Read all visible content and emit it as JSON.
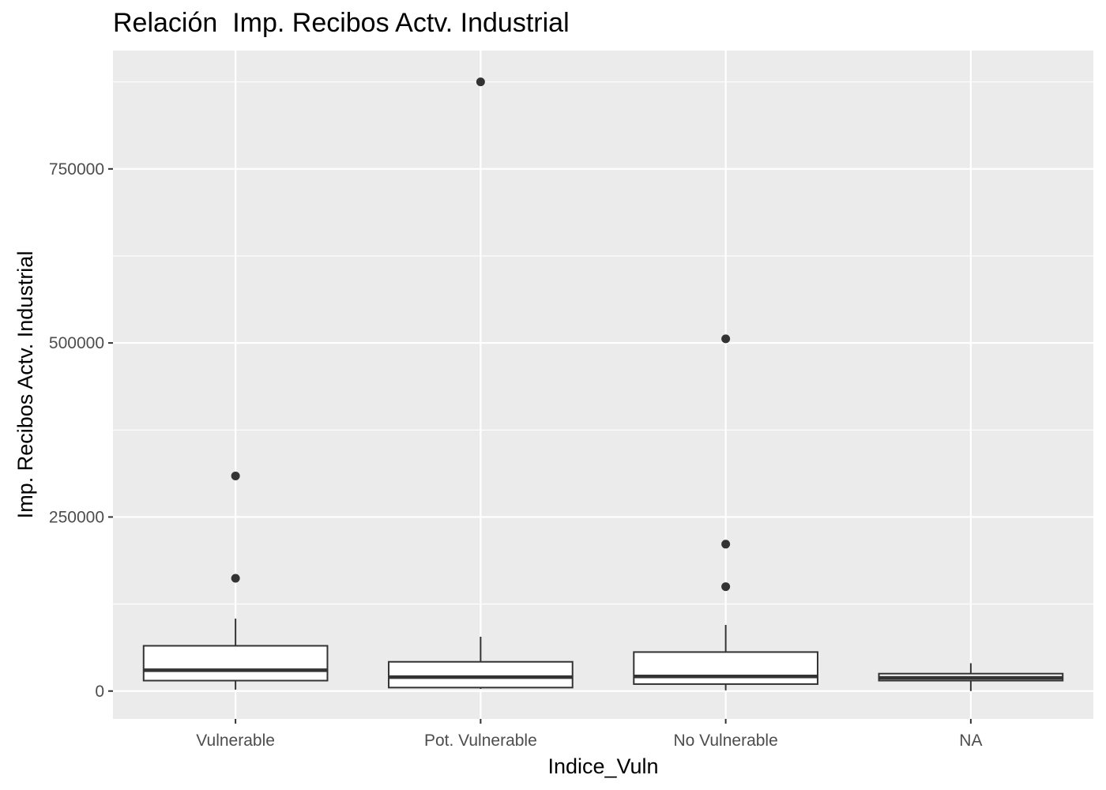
{
  "chart_data": {
    "type": "boxplot",
    "title": "Relación  Imp. Recibos Actv. Industrial",
    "xlabel": "Indice_Vuln",
    "ylabel": "Imp. Recibos Actv. Industrial",
    "categories": [
      "Vulnerable",
      "Pot. Vulnerable",
      "No Vulnerable",
      "NA"
    ],
    "y_ticks": [
      0,
      250000,
      500000,
      750000
    ],
    "y_tick_labels": [
      "0",
      "250000",
      "500000",
      "750000"
    ],
    "ylim": [
      -40000,
      920000
    ],
    "grid": true,
    "boxes": [
      {
        "category": "Vulnerable",
        "whisker_low": 2000,
        "q1": 15000,
        "median": 30000,
        "q3": 65000,
        "whisker_high": 104000,
        "outliers": [
          162000,
          309000
        ]
      },
      {
        "category": "Pot. Vulnerable",
        "whisker_low": 3000,
        "q1": 5000,
        "median": 20000,
        "q3": 42000,
        "whisker_high": 78000,
        "outliers": [
          875000
        ]
      },
      {
        "category": "No Vulnerable",
        "whisker_low": 1000,
        "q1": 10000,
        "median": 21000,
        "q3": 56000,
        "whisker_high": 95000,
        "outliers": [
          150000,
          211000,
          506000
        ]
      },
      {
        "category": "NA",
        "whisker_low": 0,
        "q1": 15000,
        "median": 19000,
        "q3": 25000,
        "whisker_high": 40000,
        "outliers": []
      }
    ],
    "colors": {
      "panel_background": "#EBEBEB",
      "grid": "#FFFFFF",
      "box_fill": "#FFFFFF",
      "box_stroke": "#333333",
      "outlier": "#333333"
    }
  }
}
